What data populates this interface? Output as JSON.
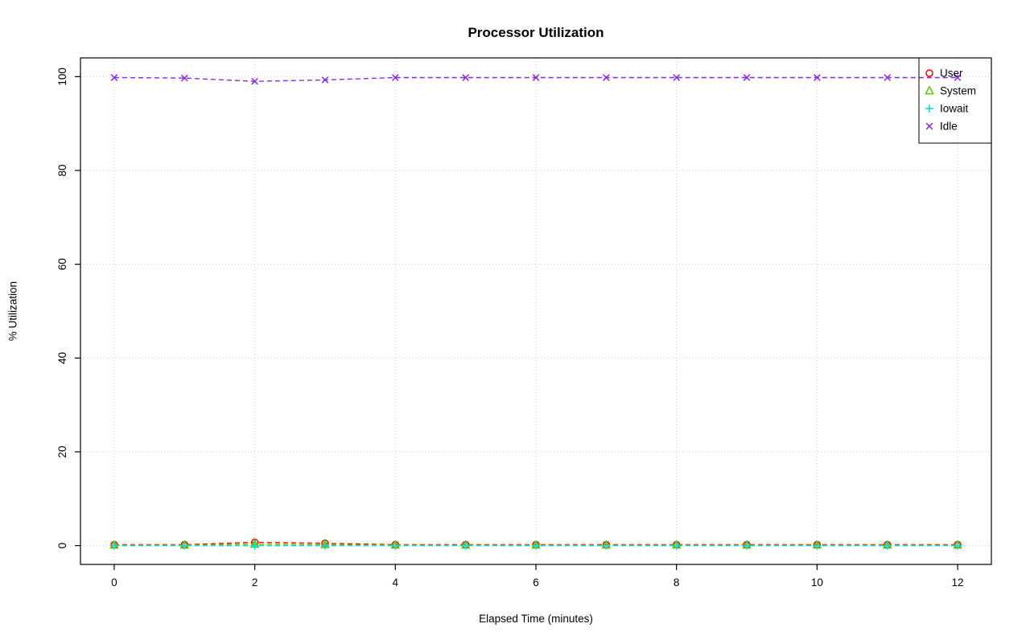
{
  "figure": {
    "title": "Processor Utilization",
    "xlabel": "Elapsed Time (minutes)",
    "ylabel": "% Utilization"
  },
  "chart_data": {
    "type": "line",
    "title": "Processor Utilization",
    "xlabel": "Elapsed Time (minutes)",
    "ylabel": "% Utilization",
    "x": [
      0,
      1,
      2,
      3,
      4,
      5,
      6,
      7,
      8,
      9,
      10,
      11,
      12
    ],
    "xlim": [
      0,
      12
    ],
    "ylim": [
      0,
      100
    ],
    "xticks": [
      0,
      2,
      4,
      6,
      8,
      10,
      12
    ],
    "yticks": [
      0,
      20,
      40,
      60,
      80,
      100
    ],
    "grid": true,
    "grid_style": "dotted",
    "line_style": "dashed",
    "legend_position": "top-right",
    "series": [
      {
        "name": "User",
        "color": "#FF0000",
        "marker": "circle",
        "values": [
          0.2,
          0.2,
          0.7,
          0.5,
          0.2,
          0.2,
          0.2,
          0.2,
          0.2,
          0.2,
          0.2,
          0.2,
          0.2
        ]
      },
      {
        "name": "System",
        "color": "#55CC00",
        "marker": "triangle",
        "values": [
          0.1,
          0.1,
          0.3,
          0.2,
          0.1,
          0.1,
          0.1,
          0.1,
          0.1,
          0.1,
          0.1,
          0.1,
          0.1
        ]
      },
      {
        "name": "Iowait",
        "color": "#00DDDD",
        "marker": "plus",
        "values": [
          0,
          0,
          0,
          0,
          0,
          0,
          0,
          0,
          0,
          0,
          0,
          0,
          0
        ]
      },
      {
        "name": "Idle",
        "color": "#8A2BE2",
        "marker": "x",
        "values": [
          99.8,
          99.7,
          99.0,
          99.3,
          99.8,
          99.8,
          99.8,
          99.8,
          99.8,
          99.8,
          99.8,
          99.8,
          99.8
        ]
      }
    ]
  }
}
